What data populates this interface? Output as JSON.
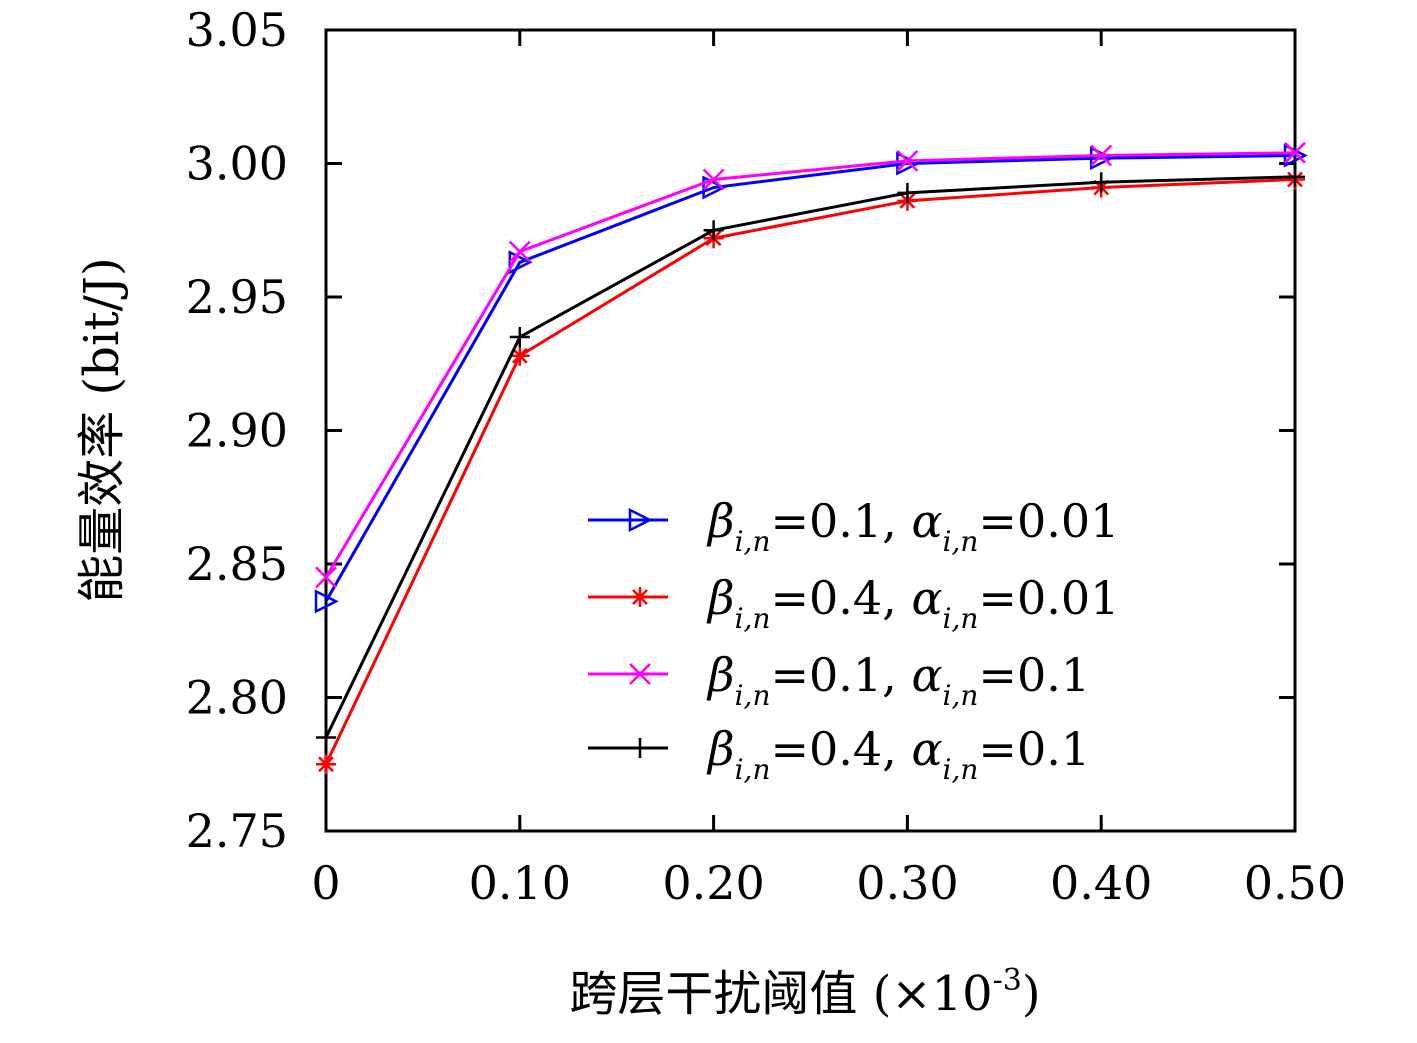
{
  "chart_data": {
    "type": "line",
    "title": "",
    "xlabel": {
      "text": "跨层干扰阈值 (×10",
      "superscript": "-3",
      "suffix": ")"
    },
    "ylabel": "能量效率 (bit/J)",
    "x": [
      0,
      0.1,
      0.2,
      0.3,
      0.4,
      0.5
    ],
    "xlim": [
      0,
      0.5
    ],
    "ylim": [
      2.75,
      3.05
    ],
    "xticks": [
      "0",
      "0.10",
      "0.20",
      "0.30",
      "0.40",
      "0.50"
    ],
    "yticks": [
      "2.75",
      "2.80",
      "2.85",
      "2.90",
      "2.95",
      "3.00",
      "3.05"
    ],
    "xtick_values": [
      0,
      0.1,
      0.2,
      0.3,
      0.4,
      0.5
    ],
    "ytick_values": [
      2.75,
      2.8,
      2.85,
      2.9,
      2.95,
      3.0,
      3.05
    ],
    "grid": false,
    "legend_position": "lower-right",
    "series": [
      {
        "name": "β_{i,n}=0.1, α_{i,n}=0.01",
        "beta": "0.1",
        "alpha": "0.01",
        "color": "#0000ff",
        "marker": "triangle-right",
        "values": [
          2.836,
          2.963,
          2.991,
          3.0,
          3.002,
          3.003
        ]
      },
      {
        "name": "β_{i,n}=0.4, α_{i,n}=0.01",
        "beta": "0.4",
        "alpha": "0.01",
        "color": "#ff0000",
        "marker": "asterisk",
        "values": [
          2.775,
          2.928,
          2.972,
          2.986,
          2.991,
          2.994
        ]
      },
      {
        "name": "β_{i,n}=0.1, α_{i,n}=0.1",
        "beta": "0.1",
        "alpha": "0.1",
        "color": "#ff00ff",
        "marker": "x",
        "values": [
          2.845,
          2.967,
          2.994,
          3.001,
          3.003,
          3.004
        ]
      },
      {
        "name": "β_{i,n}=0.4, α_{i,n}=0.1",
        "beta": "0.4",
        "alpha": "0.1",
        "color": "#000000",
        "marker": "plus",
        "values": [
          2.785,
          2.935,
          2.975,
          2.989,
          2.993,
          2.995
        ]
      }
    ],
    "legend_labels": {
      "beta_symbol": "β",
      "alpha_symbol": "α",
      "subscript": "i,n",
      "separator": ", "
    }
  }
}
